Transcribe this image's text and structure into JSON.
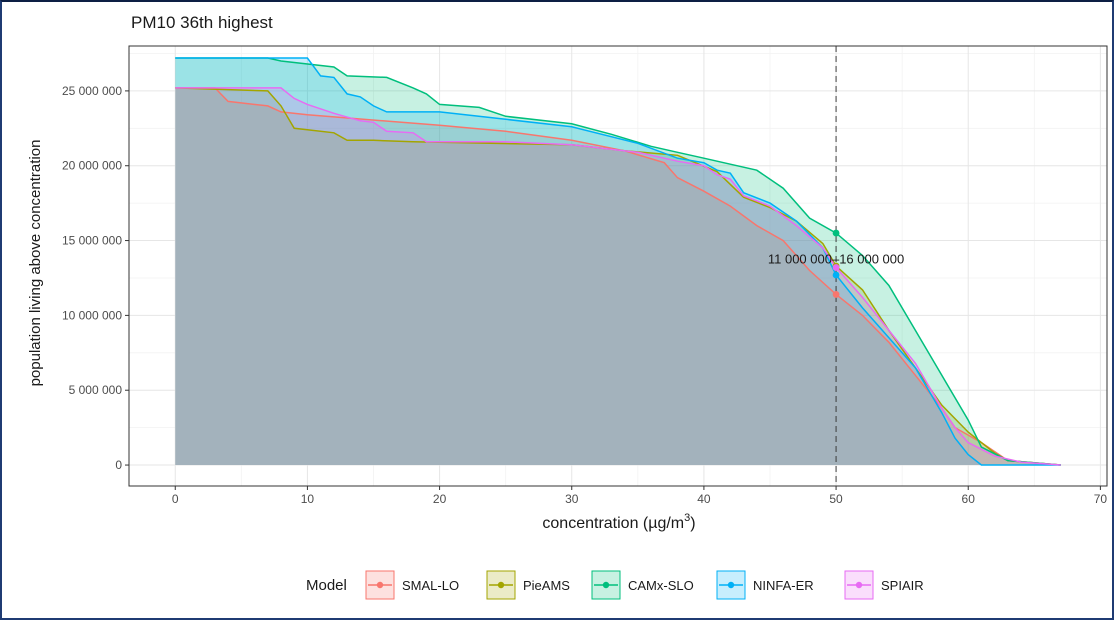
{
  "chart_data": {
    "type": "area",
    "title": "PM10 36th highest",
    "xlabel": "concentration (µg/m³)",
    "ylabel": "population living above concentration",
    "xlim": [
      -3.5,
      70.5
    ],
    "ylim": [
      -1400000,
      28000000
    ],
    "x_ticks": [
      0,
      10,
      20,
      30,
      40,
      50,
      60,
      70
    ],
    "x_tick_labels": [
      "0",
      "10",
      "20",
      "30",
      "40",
      "50",
      "60",
      "70"
    ],
    "y_ticks": [
      0,
      5000000,
      10000000,
      15000000,
      20000000,
      25000000
    ],
    "y_tick_labels": [
      "0",
      "5 000 000",
      "10 000 000",
      "15 000 000",
      "20 000 000",
      "25 000 000"
    ],
    "grid": true,
    "legend": {
      "title": "Model",
      "position": "bottom"
    },
    "reference_line": {
      "x": 50,
      "style": "dashed"
    },
    "annotation": {
      "text": "11 000 000–16 000 000",
      "x": 50,
      "y": 13800000
    },
    "series": [
      {
        "name": "SMAL-LO",
        "color": "#F8766D",
        "points": [
          [
            0,
            25200000
          ],
          [
            3,
            25200000
          ],
          [
            4,
            24300000
          ],
          [
            7,
            24000000
          ],
          [
            8,
            23600000
          ],
          [
            10,
            23400000
          ],
          [
            20,
            22700000
          ],
          [
            25,
            22300000
          ],
          [
            30,
            21700000
          ],
          [
            34,
            21000000
          ],
          [
            37,
            20200000
          ],
          [
            38,
            19200000
          ],
          [
            40,
            18300000
          ],
          [
            42,
            17300000
          ],
          [
            44,
            16000000
          ],
          [
            46,
            15000000
          ],
          [
            48,
            13000000
          ],
          [
            50,
            11400000
          ],
          [
            52,
            10000000
          ],
          [
            54,
            8200000
          ],
          [
            56,
            6000000
          ],
          [
            58,
            3800000
          ],
          [
            59,
            2500000
          ],
          [
            61,
            1500000
          ],
          [
            62,
            900000
          ],
          [
            63,
            300000
          ],
          [
            67,
            0
          ]
        ],
        "marker": {
          "x": 50,
          "y": 11400000
        }
      },
      {
        "name": "PieAMS",
        "color": "#A3A500",
        "points": [
          [
            0,
            25200000
          ],
          [
            7,
            25000000
          ],
          [
            8,
            24000000
          ],
          [
            9,
            22500000
          ],
          [
            10,
            22400000
          ],
          [
            12,
            22200000
          ],
          [
            13,
            21700000
          ],
          [
            15,
            21700000
          ],
          [
            18,
            21600000
          ],
          [
            30,
            21400000
          ],
          [
            34,
            21000000
          ],
          [
            38,
            20700000
          ],
          [
            41,
            19600000
          ],
          [
            43,
            17900000
          ],
          [
            45,
            17200000
          ],
          [
            47,
            16300000
          ],
          [
            49,
            14800000
          ],
          [
            50,
            13300000
          ],
          [
            52,
            11700000
          ],
          [
            54,
            9000000
          ],
          [
            56,
            6500000
          ],
          [
            58,
            4000000
          ],
          [
            60,
            2200000
          ],
          [
            62,
            800000
          ],
          [
            63,
            300000
          ],
          [
            67,
            0
          ]
        ],
        "marker": {
          "x": 50,
          "y": 13300000
        }
      },
      {
        "name": "CAMx-SLO",
        "color": "#00BF7D",
        "points": [
          [
            0,
            27200000
          ],
          [
            7,
            27200000
          ],
          [
            8,
            27000000
          ],
          [
            12,
            26600000
          ],
          [
            13,
            26000000
          ],
          [
            16,
            25900000
          ],
          [
            18,
            25200000
          ],
          [
            19,
            24800000
          ],
          [
            20,
            24100000
          ],
          [
            23,
            23900000
          ],
          [
            25,
            23300000
          ],
          [
            30,
            22800000
          ],
          [
            33,
            22100000
          ],
          [
            36,
            21300000
          ],
          [
            38,
            20900000
          ],
          [
            40,
            20500000
          ],
          [
            42,
            20100000
          ],
          [
            44,
            19700000
          ],
          [
            46,
            18500000
          ],
          [
            48,
            16500000
          ],
          [
            50,
            15500000
          ],
          [
            52,
            14000000
          ],
          [
            54,
            12000000
          ],
          [
            56,
            9000000
          ],
          [
            58,
            6000000
          ],
          [
            60,
            3000000
          ],
          [
            61,
            1200000
          ],
          [
            63,
            300000
          ],
          [
            67,
            0
          ]
        ],
        "marker": {
          "x": 50,
          "y": 15500000
        }
      },
      {
        "name": "NINFA-ER",
        "color": "#00B0F6",
        "points": [
          [
            0,
            27200000
          ],
          [
            10,
            27200000
          ],
          [
            11,
            26000000
          ],
          [
            12,
            25900000
          ],
          [
            13,
            24800000
          ],
          [
            14,
            24600000
          ],
          [
            15,
            24000000
          ],
          [
            16,
            23600000
          ],
          [
            20,
            23600000
          ],
          [
            25,
            23100000
          ],
          [
            30,
            22600000
          ],
          [
            35,
            21500000
          ],
          [
            38,
            20500000
          ],
          [
            40,
            20200000
          ],
          [
            41,
            19700000
          ],
          [
            42,
            19500000
          ],
          [
            43,
            18200000
          ],
          [
            45,
            17500000
          ],
          [
            47,
            16300000
          ],
          [
            49,
            14500000
          ],
          [
            50,
            12700000
          ],
          [
            52,
            10500000
          ],
          [
            54,
            8500000
          ],
          [
            56,
            6500000
          ],
          [
            58,
            3500000
          ],
          [
            59,
            1800000
          ],
          [
            60,
            700000
          ],
          [
            61,
            0
          ],
          [
            67,
            0
          ]
        ],
        "marker": {
          "x": 50,
          "y": 12700000
        }
      },
      {
        "name": "SPIAIR",
        "color": "#E76BF3",
        "points": [
          [
            0,
            25200000
          ],
          [
            8,
            25200000
          ],
          [
            9,
            24500000
          ],
          [
            10,
            24100000
          ],
          [
            12,
            23500000
          ],
          [
            14,
            23000000
          ],
          [
            15,
            22900000
          ],
          [
            16,
            22300000
          ],
          [
            18,
            22200000
          ],
          [
            19,
            21600000
          ],
          [
            25,
            21600000
          ],
          [
            30,
            21400000
          ],
          [
            35,
            20900000
          ],
          [
            38,
            20300000
          ],
          [
            40,
            20000000
          ],
          [
            41,
            19400000
          ],
          [
            42,
            19100000
          ],
          [
            43,
            18000000
          ],
          [
            45,
            17300000
          ],
          [
            47,
            16000000
          ],
          [
            49,
            14500000
          ],
          [
            50,
            13200000
          ],
          [
            52,
            11200000
          ],
          [
            54,
            9000000
          ],
          [
            56,
            6800000
          ],
          [
            58,
            3800000
          ],
          [
            59,
            2500000
          ],
          [
            60,
            1500000
          ],
          [
            62,
            600000
          ],
          [
            64,
            200000
          ],
          [
            67,
            0
          ]
        ],
        "marker": {
          "x": 50,
          "y": 13200000
        }
      }
    ]
  }
}
